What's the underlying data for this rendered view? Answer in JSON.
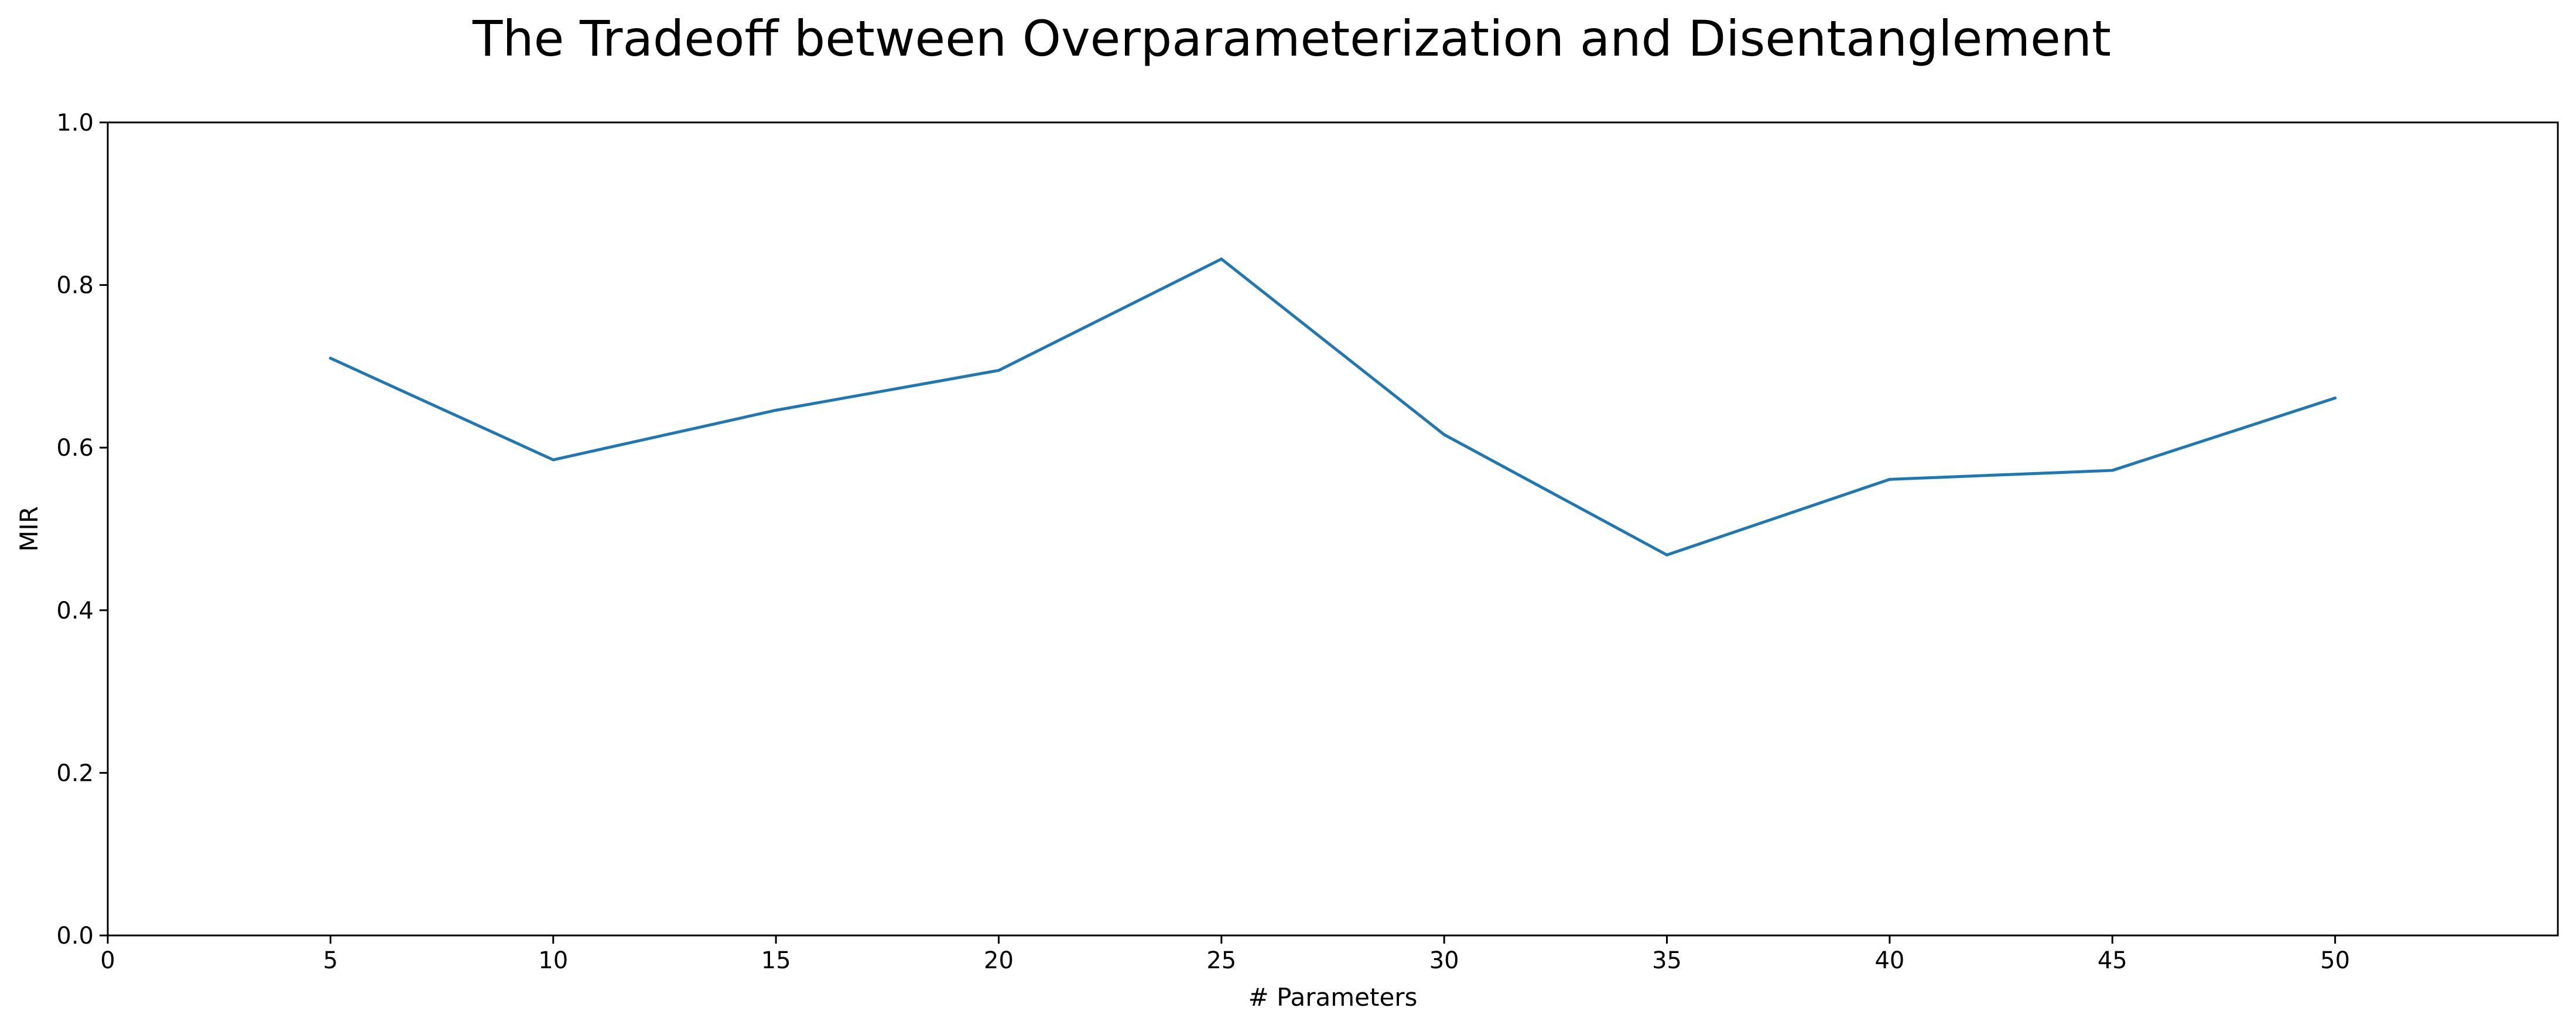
{
  "chart_data": {
    "type": "line",
    "title": "The Tradeoff between Overparameterization and Disentanglement",
    "xlabel": "# Parameters",
    "ylabel": "MIR",
    "xlim": [
      0,
      55
    ],
    "ylim": [
      0,
      1.0
    ],
    "x_ticks": [
      0,
      5,
      10,
      15,
      20,
      25,
      30,
      35,
      40,
      45,
      50
    ],
    "x_tick_labels": [
      "0",
      "5",
      "10",
      "15",
      "20",
      "25",
      "30",
      "35",
      "40",
      "45",
      "50"
    ],
    "y_ticks": [
      0,
      0.2,
      0.4,
      0.6,
      0.8,
      1.0
    ],
    "y_tick_labels": [
      "0.0",
      "0.2",
      "0.4",
      "0.6",
      "0.8",
      "1.0"
    ],
    "grid": false,
    "series": [
      {
        "color": "#1f77b4",
        "x": [
          5,
          10,
          15,
          20,
          25,
          30,
          35,
          40,
          45,
          50
        ],
        "y": [
          0.71,
          0.585,
          0.646,
          0.695,
          0.832,
          0.616,
          0.468,
          0.561,
          0.572,
          0.661
        ]
      }
    ]
  }
}
